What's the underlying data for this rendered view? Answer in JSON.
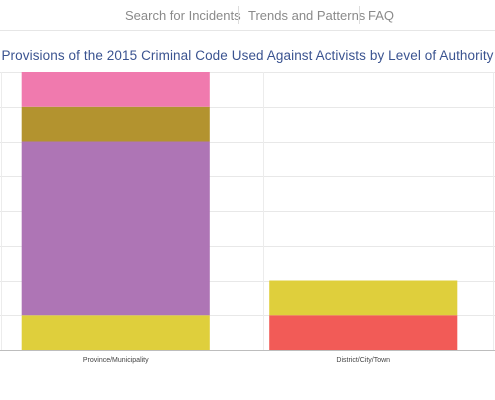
{
  "nav": {
    "links": [
      "Search for Incidents",
      "Trends and Patterns",
      "FAQ"
    ]
  },
  "chart_data": {
    "type": "bar",
    "stacked": true,
    "title": "Provisions of the 2015 Criminal Code Used Against Activists by Level of Authority",
    "categories": [
      "Province/Municipality",
      "District/City/Town"
    ],
    "xlabel": "",
    "ylabel": "",
    "ylim": [
      0,
      8
    ],
    "grid": true,
    "legend": "none",
    "series": [
      {
        "color": "#f25b57",
        "values": [
          0,
          1
        ]
      },
      {
        "color": "#dfcf3c",
        "values": [
          1,
          1
        ]
      },
      {
        "color": "#ae75b5",
        "values": [
          5,
          0
        ]
      },
      {
        "color": "#b3932f",
        "values": [
          1,
          0
        ]
      },
      {
        "color": "#f07aae",
        "values": [
          1,
          0
        ]
      }
    ]
  }
}
